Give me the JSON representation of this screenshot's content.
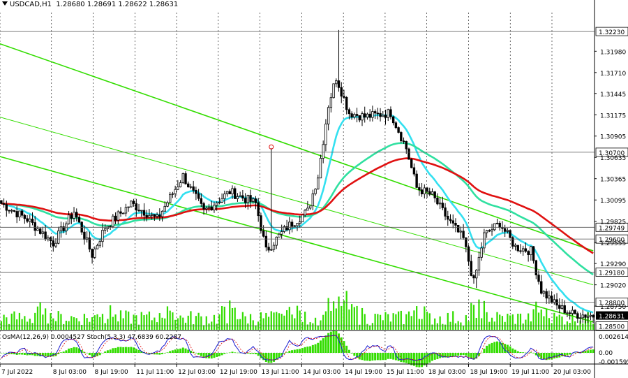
{
  "header": {
    "symbol": "USDCAD,H1",
    "ohlc": "1.28680 1.28691 1.28622 1.28631"
  },
  "osc_header": {
    "text": "OsMA(12,26,9) 0.0004527   Stoch(5,3,3) 47.6839 60.2287"
  },
  "colors": {
    "candle": "#000000",
    "background": "#ffffff",
    "grid": "#000000",
    "channel": "#33dd00",
    "ema_cyan": "#33e0f0",
    "ema_teal": "#2fe0a0",
    "ema_red": "#e01010",
    "volume": "#33dd00",
    "osma": "#33dd00",
    "stoch_main": "#1a1ad0",
    "stoch_signal": "#e00000",
    "price_label_bg": "#ffffff",
    "current_price_bg": "#000000"
  },
  "chart_data": [
    {
      "type": "candlestick",
      "symbol": "USDCAD",
      "timeframe": "H1",
      "ylim": [
        1.2845,
        1.3247
      ],
      "y_tick_labels": [
        "1.31980",
        "1.31710",
        "1.31445",
        "1.31175",
        "1.30905",
        "1.30635",
        "1.30365",
        "1.30095",
        "1.29825",
        "1.29555",
        "1.29290",
        "1.29020",
        "1.28750"
      ],
      "y_tick_values": [
        1.3198,
        1.3171,
        1.31445,
        1.31175,
        1.30905,
        1.30635,
        1.30365,
        1.30095,
        1.29825,
        1.29555,
        1.2929,
        1.2902,
        1.2875
      ],
      "horizontal_levels": [
        1.3223,
        1.307,
        1.29749,
        1.296,
        1.2918,
        1.288,
        1.285
      ],
      "horizontal_level_labels": [
        "1.32230",
        "1.30700",
        "1.29749",
        "1.29600",
        "1.29180",
        "1.28800",
        "1.28500"
      ],
      "current_price": 1.28631,
      "current_price_label": "1.28631",
      "x_tick_labels": [
        "7 Jul 2022",
        "8 Jul 03:00",
        "8 Jul 19:00",
        "11 Jul 11:00",
        "12 Jul 03:00",
        "12 Jul 19:00",
        "13 Jul 11:00",
        "14 Jul 03:00",
        "14 Jul 19:00",
        "15 Jul 11:00",
        "18 Jul 03:00",
        "18 Jul 19:00",
        "19 Jul 11:00",
        "20 Jul 03:00"
      ],
      "price_waypoints": [
        {
          "bar": 0,
          "price": 1.3005
        },
        {
          "bar": 10,
          "price": 1.2985
        },
        {
          "bar": 20,
          "price": 1.2955
        },
        {
          "bar": 28,
          "price": 1.2995
        },
        {
          "bar": 35,
          "price": 1.294
        },
        {
          "bar": 40,
          "price": 1.2975
        },
        {
          "bar": 50,
          "price": 1.3005
        },
        {
          "bar": 60,
          "price": 1.2985
        },
        {
          "bar": 70,
          "price": 1.304
        },
        {
          "bar": 78,
          "price": 1.2995
        },
        {
          "bar": 88,
          "price": 1.302
        },
        {
          "bar": 98,
          "price": 1.3005
        },
        {
          "bar": 102,
          "price": 1.2945
        },
        {
          "bar": 110,
          "price": 1.2975
        },
        {
          "bar": 118,
          "price": 1.2995
        },
        {
          "bar": 122,
          "price": 1.304
        },
        {
          "bar": 126,
          "price": 1.313
        },
        {
          "bar": 129,
          "price": 1.3165
        },
        {
          "bar": 134,
          "price": 1.312
        },
        {
          "bar": 140,
          "price": 1.3115
        },
        {
          "bar": 150,
          "price": 1.312
        },
        {
          "bar": 156,
          "price": 1.3075
        },
        {
          "bar": 160,
          "price": 1.3025
        },
        {
          "bar": 166,
          "price": 1.3015
        },
        {
          "bar": 172,
          "price": 1.2985
        },
        {
          "bar": 178,
          "price": 1.296
        },
        {
          "bar": 182,
          "price": 1.2905
        },
        {
          "bar": 186,
          "price": 1.2965
        },
        {
          "bar": 192,
          "price": 1.298
        },
        {
          "bar": 198,
          "price": 1.295
        },
        {
          "bar": 204,
          "price": 1.2945
        },
        {
          "bar": 208,
          "price": 1.2895
        },
        {
          "bar": 214,
          "price": 1.2875
        },
        {
          "bar": 220,
          "price": 1.2865
        },
        {
          "bar": 228,
          "price": 1.2863
        }
      ],
      "spikes": [
        {
          "bar": 104,
          "price": 1.3075,
          "marker": "circle"
        },
        {
          "bar": 130,
          "price": 1.3225
        },
        {
          "bar": 183,
          "price": 1.2898
        }
      ],
      "channel_lines": [
        {
          "name": "",
          "from": [
            0,
            1.3208
          ],
          "to": [
            228,
            1.2945
          ]
        },
        {
          "name": "",
          "from": [
            0,
            1.3115
          ],
          "to": [
            228,
            1.2902
          ]
        },
        {
          "name": "",
          "from": [
            0,
            1.3065
          ],
          "to": [
            228,
            1.2855
          ]
        }
      ],
      "moving_averages": [
        {
          "name": "",
          "color": "ema_cyan",
          "period": 12
        },
        {
          "name": "",
          "color": "ema_teal",
          "period": 50
        },
        {
          "name": "",
          "color": "ema_red",
          "period": 80
        }
      ],
      "volume": "bars per hour, relative"
    },
    {
      "type": "oscillator",
      "name": "OsMA(12,26,9) / Stoch(5,3,3)",
      "y_tick_labels": [
        "0.002614",
        "0.00",
        "-0.001595"
      ],
      "y_tick_values": [
        0.002614,
        0.0,
        -0.001595
      ],
      "osma_value": 0.0004527,
      "stoch_main": 47.6839,
      "stoch_signal": 60.2287
    }
  ]
}
